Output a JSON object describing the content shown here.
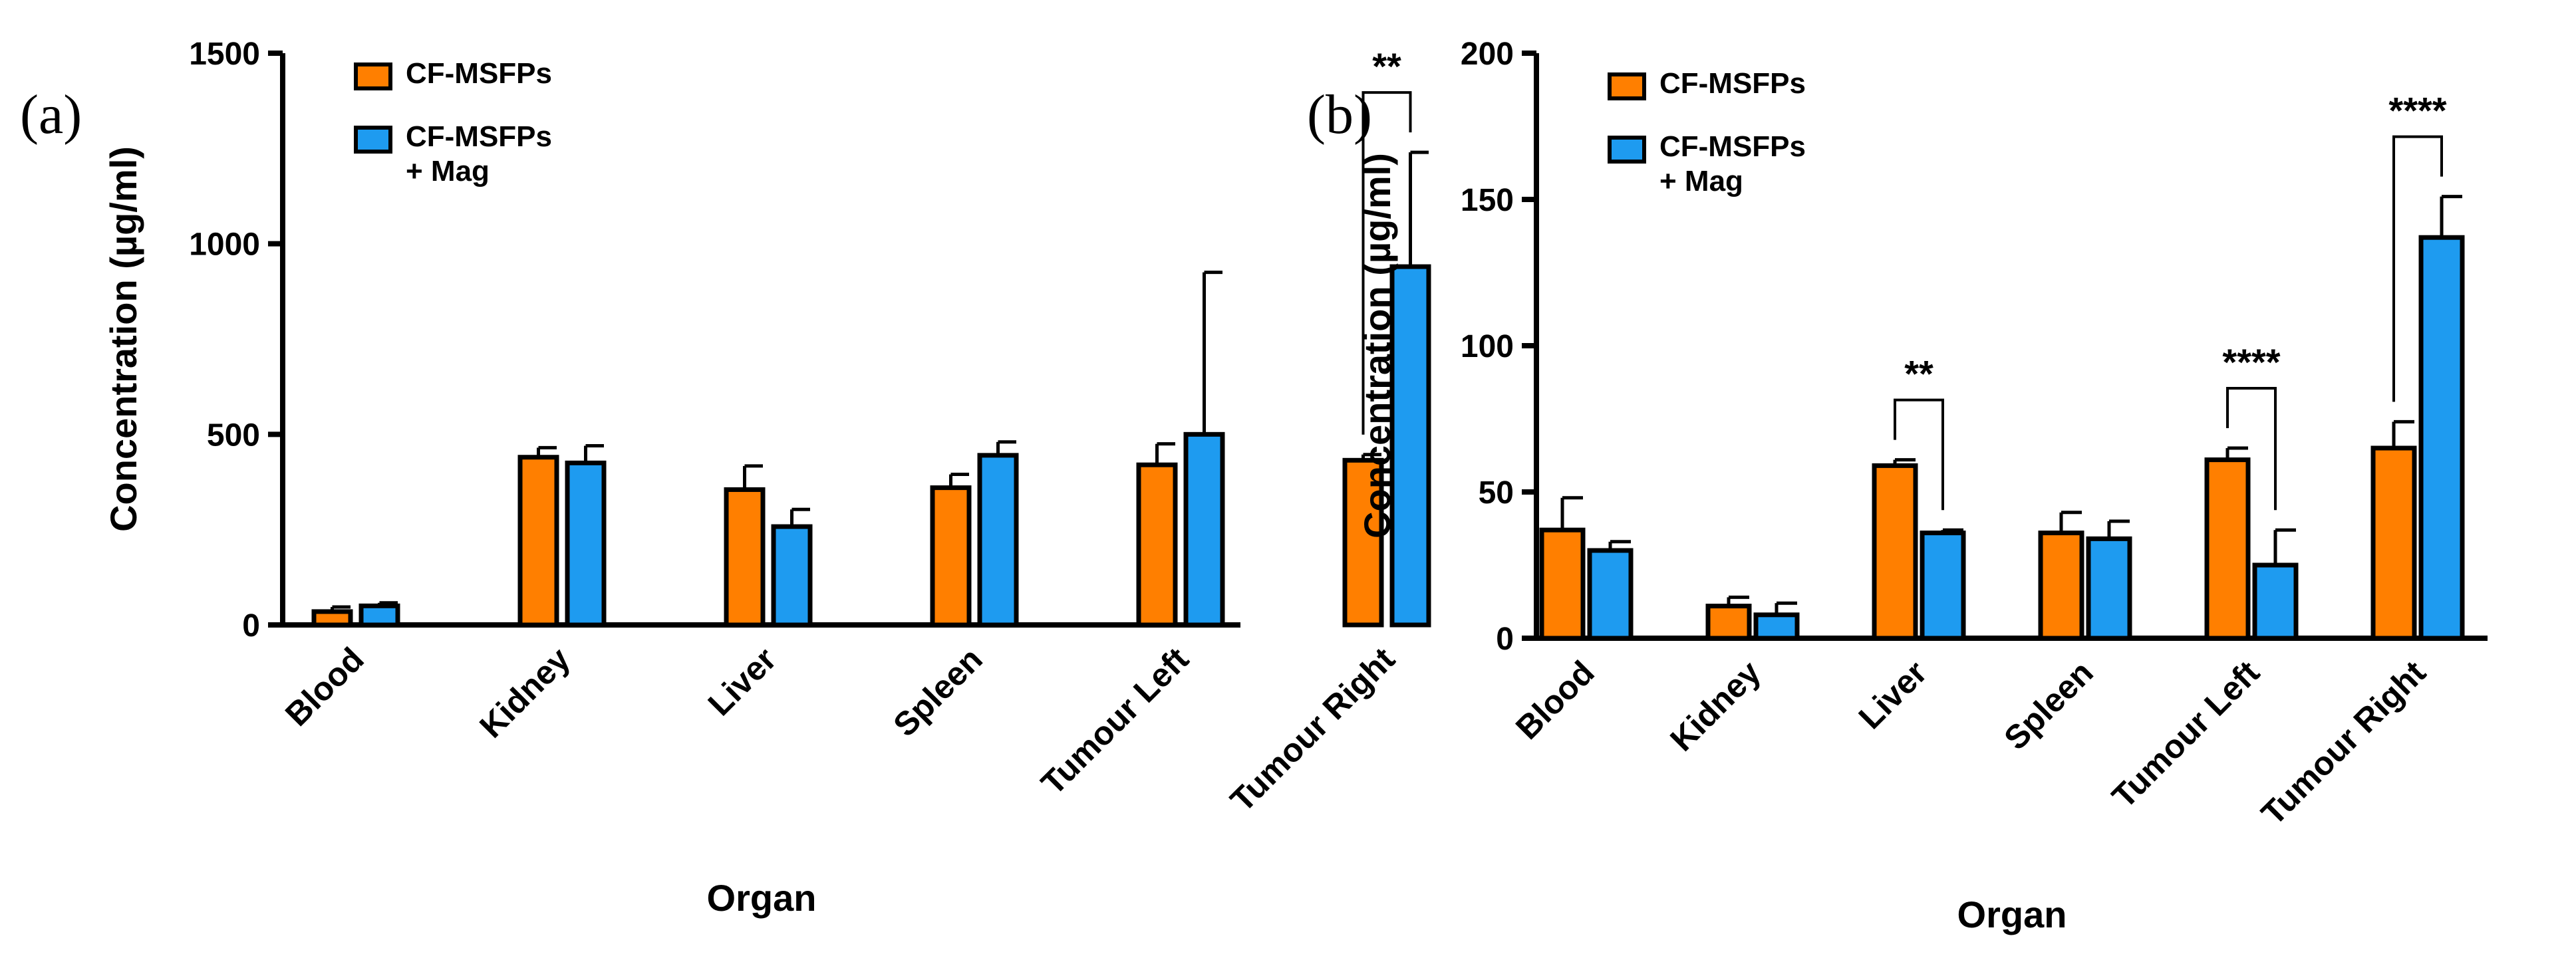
{
  "colors": {
    "cf_msfps": "#FF7F00",
    "cf_msfps_mag": "#1E9BF0",
    "stroke": "#000000"
  },
  "chart_data": [
    {
      "type": "bar",
      "panel_label": "(a)",
      "categories": [
        "Blood",
        "Kidney",
        "Liver",
        "Spleen",
        "Tumour Left",
        "Tumour Right"
      ],
      "series": [
        {
          "name": "CF-MSFPs",
          "values": [
            35,
            440,
            355,
            360,
            420,
            432
          ],
          "errors": [
            12,
            25,
            62,
            35,
            55,
            15
          ]
        },
        {
          "name": "CF-MSFPs\n+ Mag",
          "values": [
            50,
            425,
            258,
            445,
            500,
            940
          ],
          "errors": [
            8,
            45,
            45,
            35,
            425,
            300
          ]
        }
      ],
      "xlabel": "Organ",
      "ylabel": "Concentration (µg/ml)",
      "ylim": [
        0,
        1500
      ],
      "yticks": [
        0,
        500,
        1000,
        1500
      ],
      "legend": "top-left",
      "grid": false,
      "significance": [
        {
          "category": "Tumour Right",
          "label": "**"
        }
      ]
    },
    {
      "type": "bar",
      "panel_label": "(b)",
      "categories": [
        "Blood",
        "Kidney",
        "Liver",
        "Spleen",
        "Tumour Left",
        "Tumour Right"
      ],
      "series": [
        {
          "name": "CF-MSFPs",
          "values": [
            37,
            11,
            59,
            36,
            61,
            65
          ],
          "errors": [
            11,
            3,
            2,
            7,
            4,
            9
          ]
        },
        {
          "name": "CF-MSFPs\n+ Mag",
          "values": [
            30,
            8,
            36,
            34,
            25,
            137
          ],
          "errors": [
            3,
            4,
            1,
            6,
            12,
            14
          ]
        }
      ],
      "xlabel": "Organ",
      "ylabel": "Concentration (µg/ml)",
      "ylim": [
        0,
        200
      ],
      "yticks": [
        0,
        50,
        100,
        150,
        200
      ],
      "legend": "top-left",
      "grid": false,
      "significance": [
        {
          "category": "Liver",
          "label": "**"
        },
        {
          "category": "Tumour Left",
          "label": "****"
        },
        {
          "category": "Tumour Right",
          "label": "****"
        }
      ]
    }
  ]
}
